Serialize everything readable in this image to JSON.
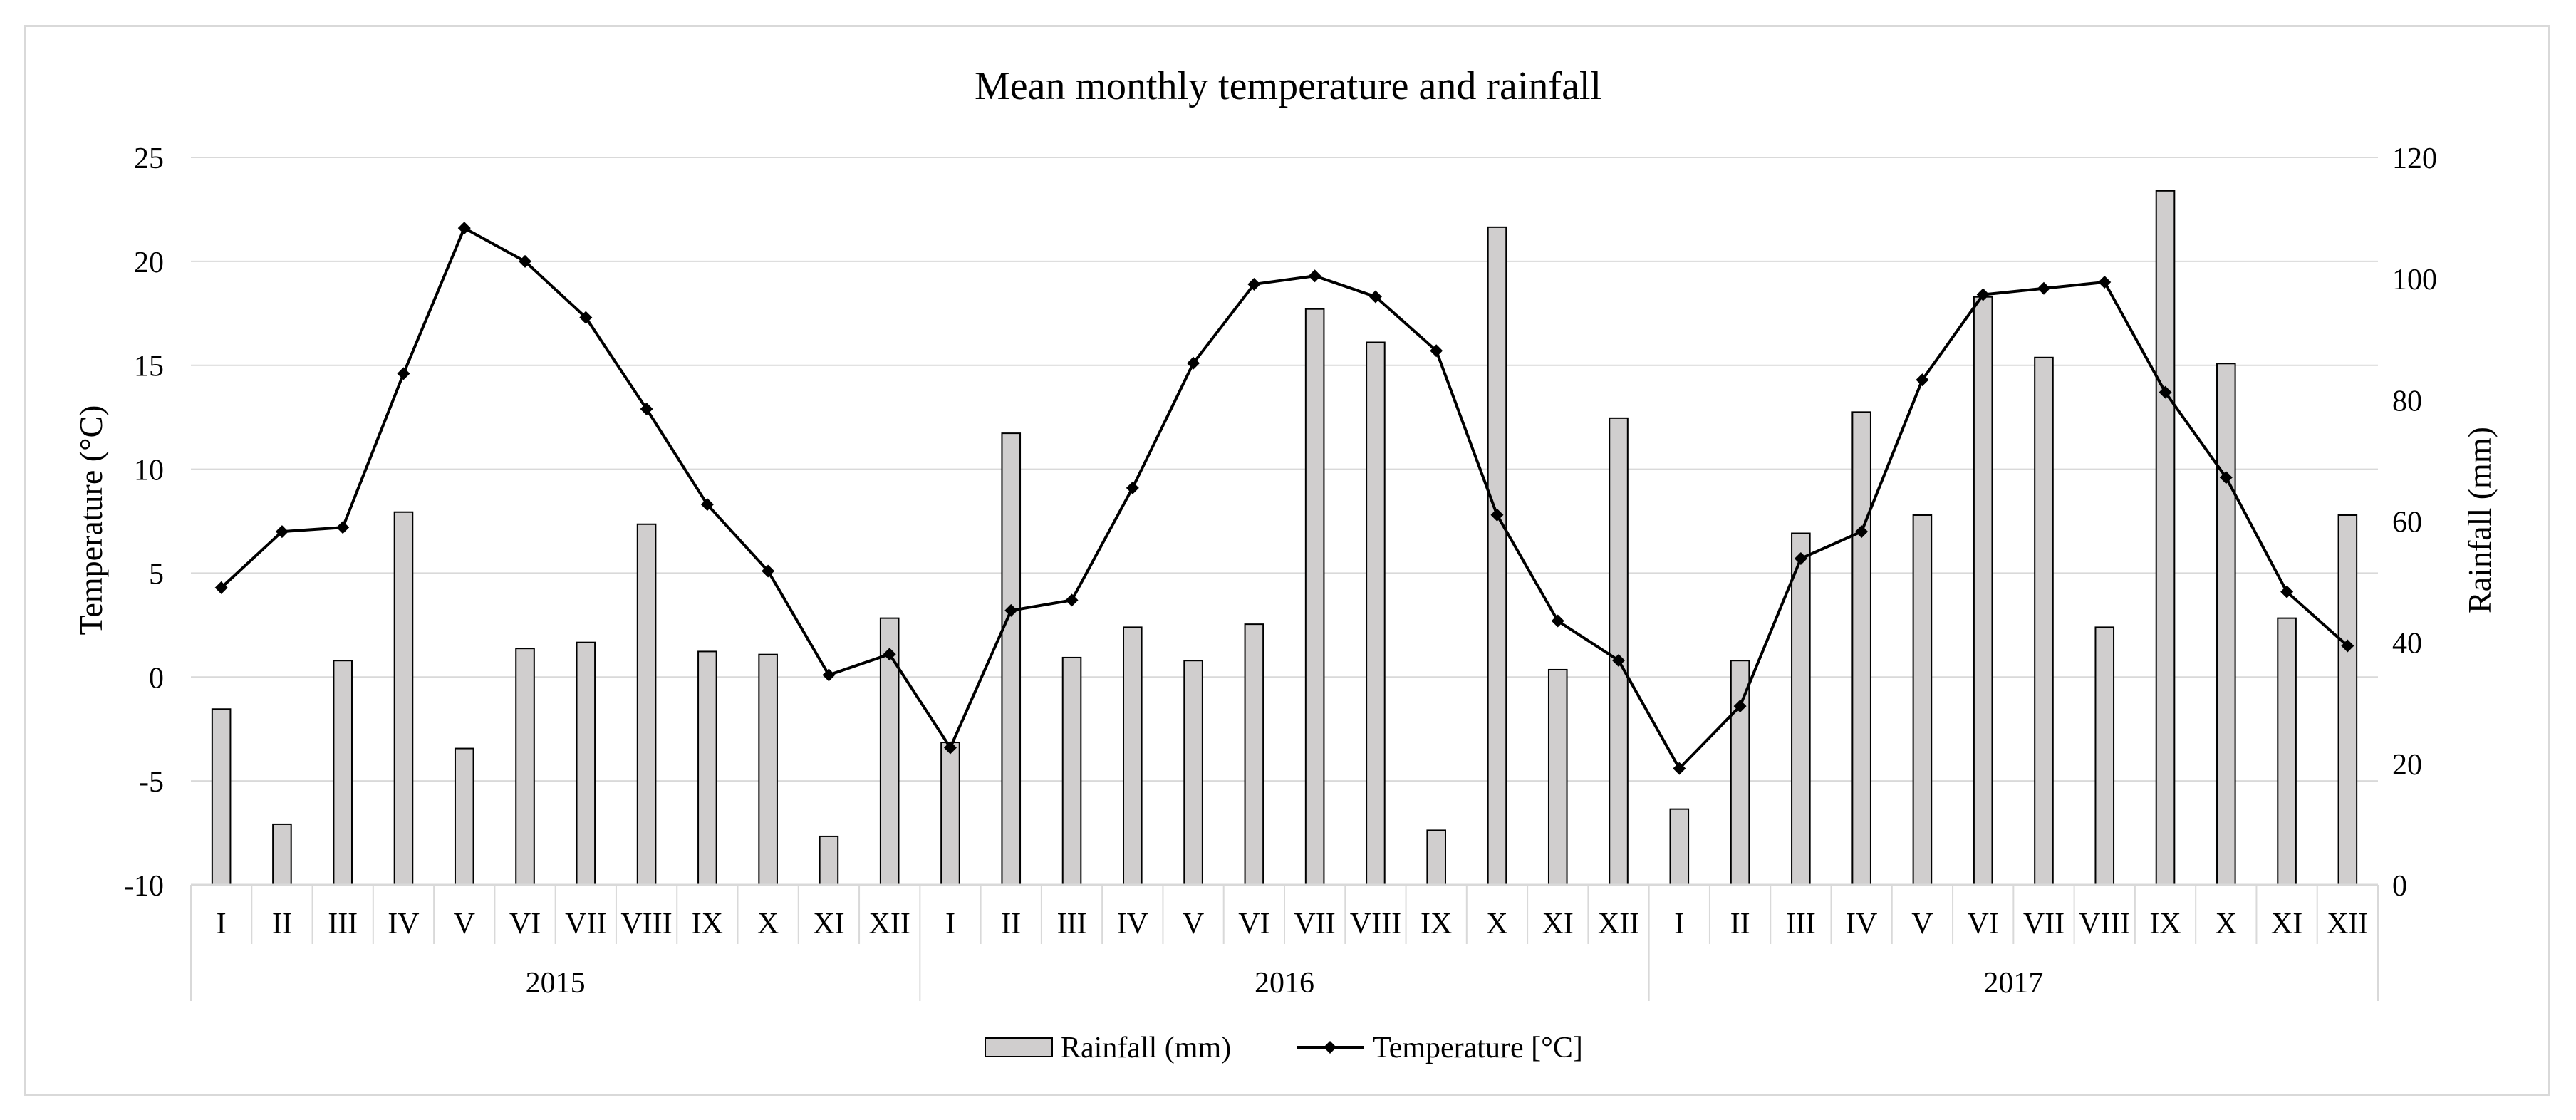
{
  "chart_data": {
    "type": "bar+line",
    "title": "Mean monthly temperature and rainfall",
    "y_left_label": "Temperature (°C)",
    "y_right_label": "Rainfall (mm)",
    "y_left_range": [
      -10,
      25
    ],
    "y_left_ticks": [
      "25",
      "20",
      "15",
      "10",
      "5",
      "0",
      "-5",
      "-10"
    ],
    "y_right_range": [
      0,
      120
    ],
    "y_right_ticks": [
      "120",
      "100",
      "80",
      "60",
      "40",
      "20",
      "0"
    ],
    "gridlines": true,
    "legend_position": "bottom",
    "years": [
      "2015",
      "2016",
      "2017"
    ],
    "months": [
      "I",
      "II",
      "III",
      "IV",
      "V",
      "VI",
      "VII",
      "VIII",
      "IX",
      "X",
      "XI",
      "XII"
    ],
    "series": [
      {
        "name": "Rainfall (mm)",
        "type": "bar",
        "axis": "right",
        "color": "#d0cece",
        "values": [
          29,
          10,
          37,
          61.5,
          22.5,
          39,
          40,
          59.5,
          38.5,
          38,
          8,
          44,
          23.5,
          74.5,
          37.5,
          42.5,
          37,
          43,
          95,
          89.5,
          9,
          108.5,
          35.5,
          77,
          12.5,
          37,
          58,
          78,
          61,
          97,
          87,
          42.5,
          114.5,
          86,
          44,
          61
        ]
      },
      {
        "name": "Temperature [°C]",
        "type": "line",
        "axis": "left",
        "color": "#000000",
        "values": [
          4.3,
          7.0,
          7.2,
          14.6,
          21.6,
          20.0,
          17.3,
          12.9,
          8.3,
          5.1,
          0.1,
          1.1,
          -3.4,
          3.2,
          3.7,
          9.1,
          15.1,
          18.9,
          19.3,
          18.3,
          15.7,
          7.8,
          2.7,
          0.8,
          -4.4,
          -1.4,
          5.7,
          7.0,
          14.3,
          18.4,
          18.7,
          19.0,
          13.7,
          9.6,
          4.1,
          1.5
        ]
      }
    ]
  },
  "colors": {
    "bar_fill": "#d0cece",
    "bar_stroke": "#000000",
    "line": "#000000",
    "grid": "#d9d9d9",
    "frame": "#d9d9d9"
  }
}
